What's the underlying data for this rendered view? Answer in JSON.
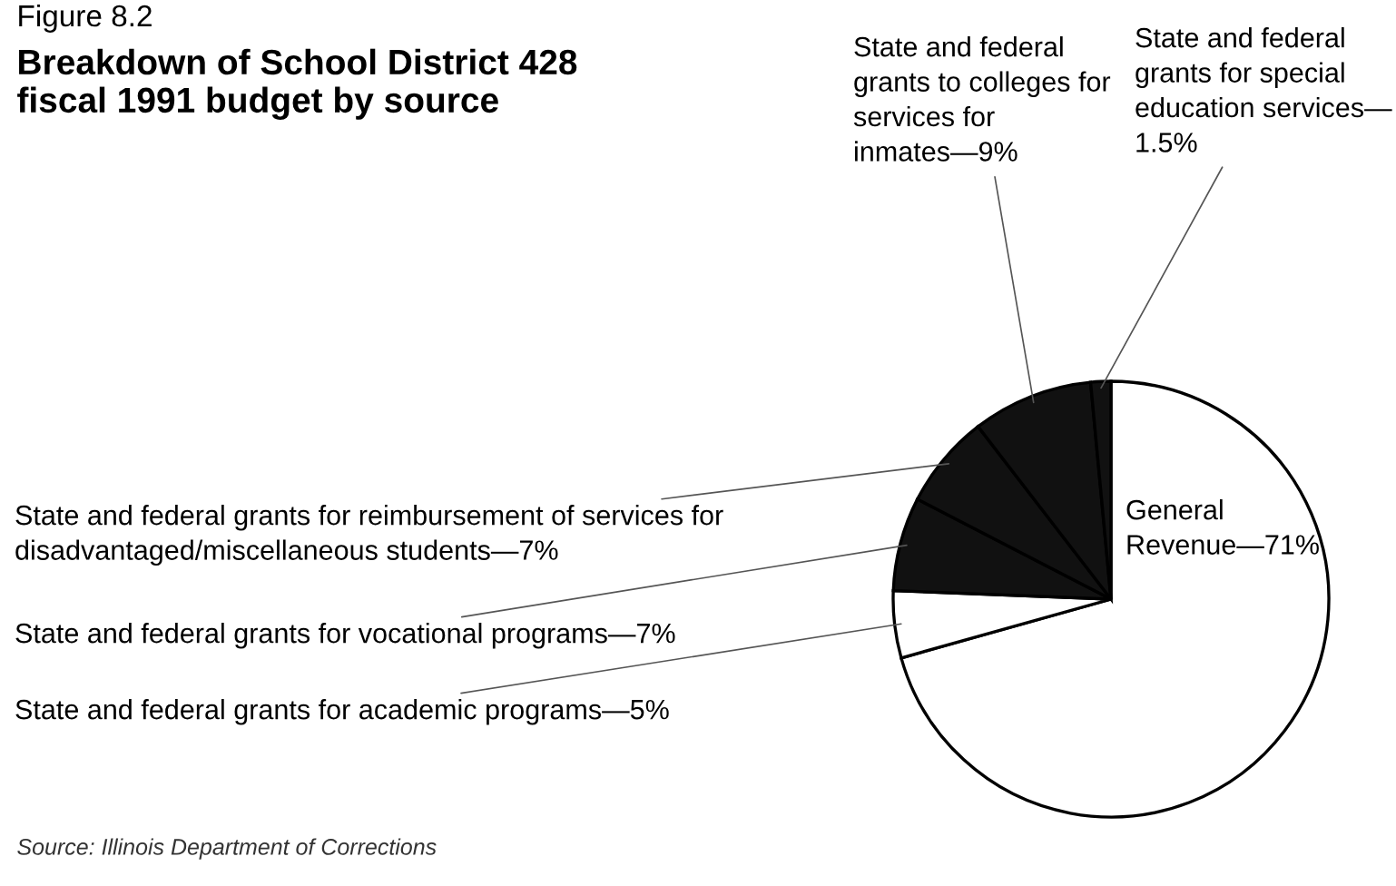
{
  "chart_data": {
    "type": "pie",
    "subtitle": "Figure 8.2",
    "title": "Breakdown of School District 428\nfiscal 1991 budget by source",
    "categories": [
      "General\nRevenue—71%",
      "State and federal grants for academic programs—5%",
      "State and federal grants for vocational programs—7%",
      "State and federal grants for reimbursement of services for\ndisadvantaged/miscellaneous students—7%",
      "State and federal\ngrants to colleges for\nservices for\ninmates—9%",
      "State and federal\ngrants for special\neducation services—\n1.5%"
    ],
    "values": [
      71,
      5,
      7,
      7,
      9,
      1.5
    ],
    "colors": [
      "#ffffff",
      "#ffffff",
      "#111111",
      "#111111",
      "#111111",
      "#111111"
    ],
    "annotations": [
      "Source: Illinois Department of Corrections"
    ]
  }
}
